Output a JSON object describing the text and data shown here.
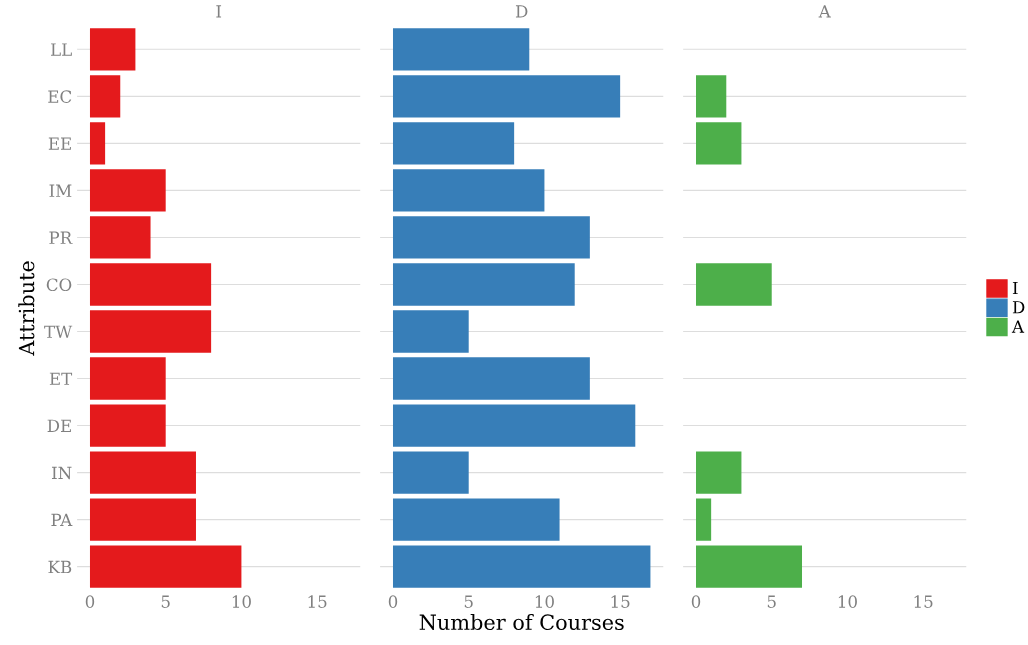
{
  "chart_data": [
    {
      "type": "bar",
      "orientation": "horizontal",
      "title": "I",
      "ylabel": "Attribute",
      "categories": [
        "LL",
        "EC",
        "EE",
        "IM",
        "PR",
        "CO",
        "TW",
        "ET",
        "DE",
        "IN",
        "PA",
        "KB"
      ],
      "series": [
        {
          "name": "I",
          "color": "#e41a1c",
          "values": [
            3,
            2,
            1,
            5,
            4,
            8,
            8,
            5,
            5,
            7,
            7,
            10
          ]
        }
      ],
      "xlim": [
        -0.85,
        17.85
      ],
      "xticks": [
        0,
        5,
        10,
        15
      ],
      "grid": "y"
    },
    {
      "type": "bar",
      "orientation": "horizontal",
      "title": "D",
      "xlabel": "Number of Courses",
      "series": [
        {
          "name": "D",
          "color": "#377eb8",
          "values": [
            9,
            15,
            8,
            10,
            13,
            12,
            5,
            13,
            16,
            5,
            11,
            17
          ]
        }
      ],
      "xlim": [
        -0.85,
        17.85
      ],
      "xticks": [
        0,
        5,
        10,
        15
      ],
      "grid": "y",
      "tick_labels": "x"
    },
    {
      "type": "bar",
      "orientation": "horizontal",
      "title": "A",
      "series": [
        {
          "name": "A",
          "color": "#4daf4a",
          "values": [
            null,
            2,
            3,
            null,
            null,
            5,
            null,
            null,
            null,
            3,
            1,
            7
          ]
        }
      ],
      "xlim": [
        -0.85,
        17.85
      ],
      "xticks": [
        0,
        5,
        10,
        15
      ],
      "grid": "y",
      "tick_labels": "x",
      "legend": "right"
    }
  ]
}
